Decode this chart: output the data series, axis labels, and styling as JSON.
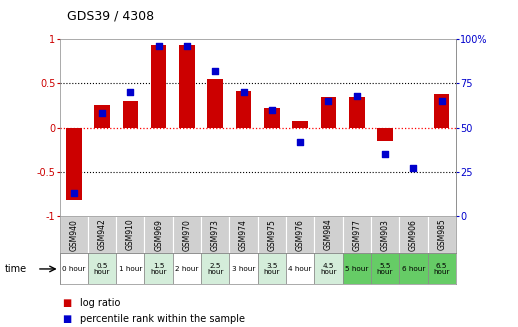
{
  "title": "GDS39 / 4308",
  "samples": [
    "GSM940",
    "GSM942",
    "GSM910",
    "GSM969",
    "GSM970",
    "GSM973",
    "GSM974",
    "GSM975",
    "GSM976",
    "GSM984",
    "GSM977",
    "GSM903",
    "GSM906",
    "GSM985"
  ],
  "time_labels": [
    "0 hour",
    "0.5\nhour",
    "1 hour",
    "1.5\nhour",
    "2 hour",
    "2.5\nhour",
    "3 hour",
    "3.5\nhour",
    "4 hour",
    "4.5\nhour",
    "5 hour",
    "5.5\nhour",
    "6 hour",
    "6.5\nhour"
  ],
  "log_ratio": [
    -0.82,
    0.25,
    0.3,
    0.93,
    0.93,
    0.55,
    0.41,
    0.22,
    0.07,
    0.35,
    0.35,
    -0.15,
    0.0,
    0.38
  ],
  "percentile": [
    13,
    58,
    70,
    96,
    96,
    82,
    70,
    60,
    42,
    65,
    68,
    35,
    27,
    65
  ],
  "bar_color": "#cc0000",
  "dot_color": "#0000cc",
  "ylim_left": [
    -1,
    1
  ],
  "ylim_right": [
    0,
    100
  ],
  "yticks_left": [
    -1,
    -0.5,
    0,
    0.5,
    1
  ],
  "ytick_labels_left": [
    "-1",
    "-0.5",
    "0",
    "0.5",
    "1"
  ],
  "yticks_right": [
    0,
    25,
    50,
    75,
    100
  ],
  "ytick_labels_right": [
    "0",
    "25",
    "50",
    "75",
    "100%"
  ],
  "time_bg_colors": [
    "#ffffff",
    "#d4edda",
    "#ffffff",
    "#d4edda",
    "#ffffff",
    "#d4edda",
    "#ffffff",
    "#d4edda",
    "#ffffff",
    "#d4edda",
    "#66cc66",
    "#66cc66",
    "#66cc66",
    "#66cc66"
  ],
  "legend_red": "log ratio",
  "legend_blue": "percentile rank within the sample",
  "time_label": "time"
}
